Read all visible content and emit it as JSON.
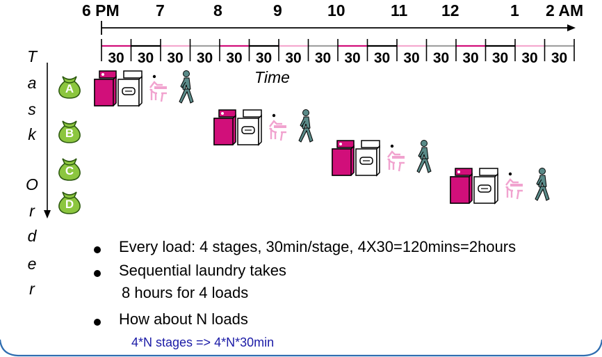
{
  "timeline": {
    "hours": [
      "6 PM",
      "7",
      "8",
      "9",
      "10",
      "11",
      "12",
      "1",
      "2 AM"
    ],
    "slot_labels": [
      "30",
      "30",
      "30",
      "30",
      "30",
      "30",
      "30",
      "30",
      "30",
      "30",
      "30",
      "30",
      "30",
      "30",
      "30",
      "30"
    ],
    "axis_title": "Time"
  },
  "task_axis": {
    "letters": [
      "T",
      "a",
      "s",
      "k",
      "O",
      "r",
      "d",
      "e",
      "r"
    ]
  },
  "loads": [
    "A",
    "B",
    "C",
    "D"
  ],
  "stage_icons": [
    "washer-icon",
    "dryer-icon",
    "folder-icon",
    "walker-icon"
  ],
  "bullets": [
    {
      "text": "Every load: 4 stages, 30min/stage, 4X30=120mins=2hours",
      "sub": ""
    },
    {
      "text": "Sequential laundry takes",
      "sub": "8 hours for 4 loads"
    },
    {
      "text": "How about N loads",
      "sub": ""
    }
  ],
  "note": "4*N stages => 4*N*30min",
  "colors": {
    "washer": "#d10f7a",
    "fold": "#f1a3cf",
    "walker": "#5a8a88",
    "bag": "#8cc63f",
    "slot_alt": "#f4a9cf",
    "slot_gray": "#a0a0a0",
    "note": "#1a1aa6",
    "frame": "#2f6db0"
  }
}
